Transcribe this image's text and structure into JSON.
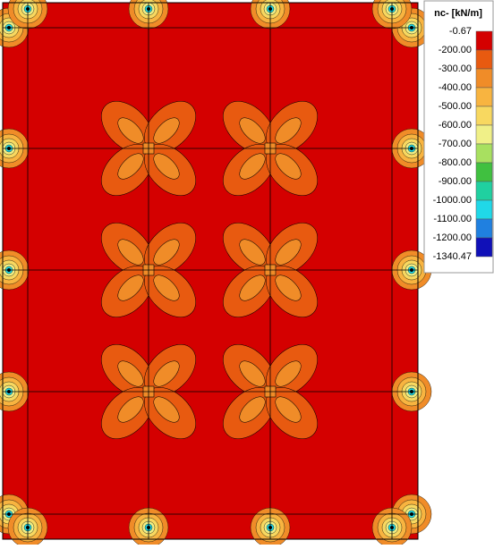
{
  "legend": {
    "title": "nc- [kN/m]",
    "labels": [
      "-0.67",
      "-200.00",
      "-300.00",
      "-400.00",
      "-500.00",
      "-600.00",
      "-700.00",
      "-800.00",
      "-900.00",
      "-1000.00",
      "-1100.00",
      "-1200.00",
      "-1340.47"
    ],
    "colors": [
      "#d40000",
      "#e85a10",
      "#f08c28",
      "#f8b440",
      "#f8d860",
      "#f0f088",
      "#a8e060",
      "#40c040",
      "#20d0a0",
      "#20d8e8",
      "#2080e0",
      "#1010b8"
    ]
  }
}
